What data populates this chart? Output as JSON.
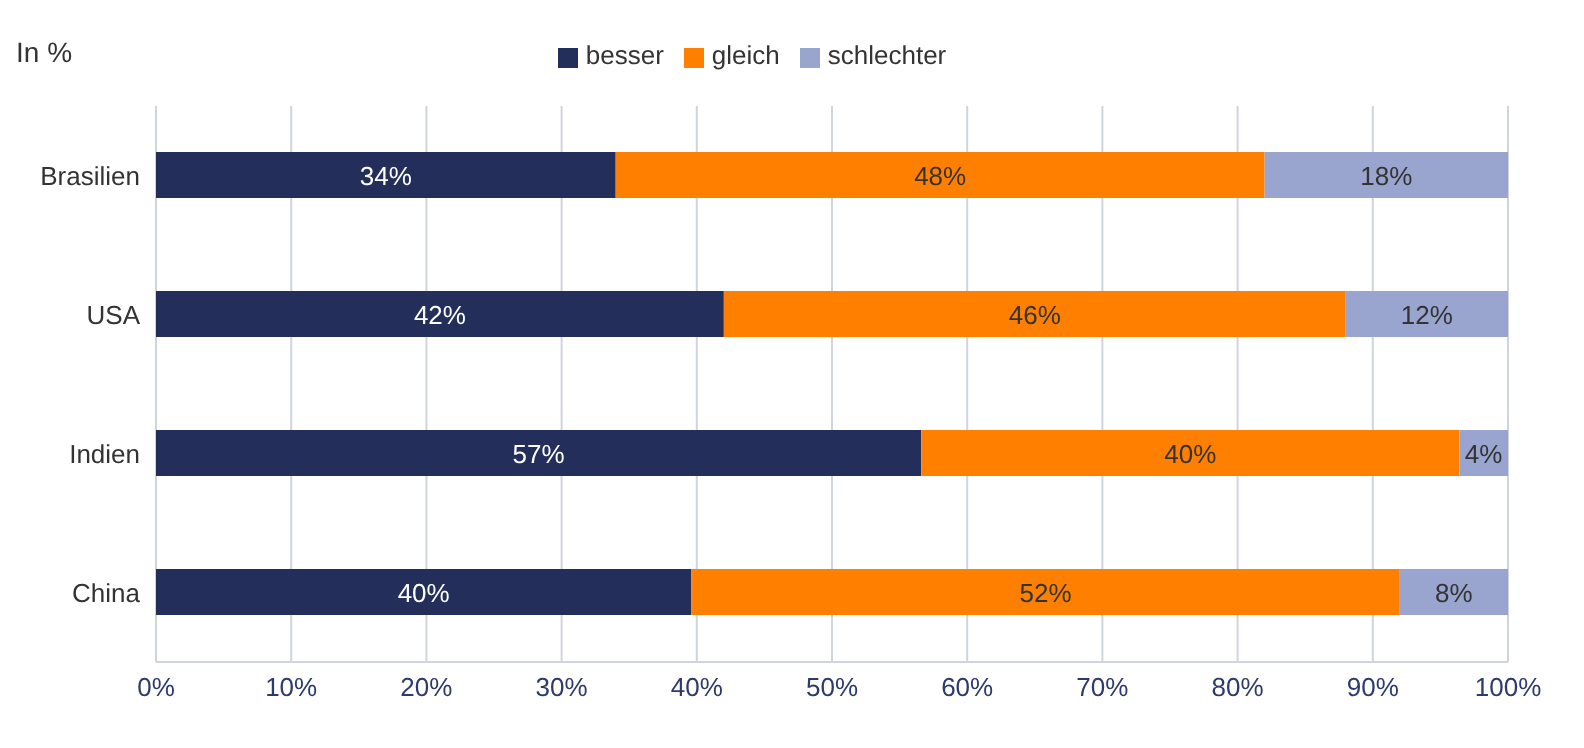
{
  "chart_data": {
    "type": "bar",
    "title": "In %",
    "orientation": "horizontal",
    "stacked": true,
    "categories": [
      "Brasilien",
      "USA",
      "Indien",
      "China"
    ],
    "series": [
      {
        "name": "besser",
        "color": "#232f5a",
        "values": [
          34,
          42,
          56.6,
          39.6
        ],
        "value_labels": [
          "34%",
          "42%",
          "57%",
          "40%"
        ]
      },
      {
        "name": "gleich",
        "color": "#ff8000",
        "values": [
          48,
          46,
          39.8,
          52.4
        ],
        "value_labels": [
          "48%",
          "46%",
          "40%",
          "52%"
        ]
      },
      {
        "name": "schlechter",
        "color": "#9aa5cf",
        "values": [
          18,
          12,
          3.6,
          8
        ],
        "value_labels": [
          "18%",
          "12%",
          "4%",
          "8%"
        ]
      }
    ],
    "xlim": [
      0,
      100
    ],
    "xticks": [
      {
        "value": 0,
        "label": "0%"
      },
      {
        "value": 10,
        "label": "10%"
      },
      {
        "value": 20,
        "label": "20%"
      },
      {
        "value": 30,
        "label": "30%"
      },
      {
        "value": 40,
        "label": "40%"
      },
      {
        "value": 50,
        "label": "50%"
      },
      {
        "value": 60,
        "label": "60%"
      },
      {
        "value": 70,
        "label": "70%"
      },
      {
        "value": 80,
        "label": "80%"
      },
      {
        "value": 90,
        "label": "90%"
      },
      {
        "value": 100,
        "label": "100%"
      }
    ],
    "grid": "x",
    "legend": "top"
  }
}
